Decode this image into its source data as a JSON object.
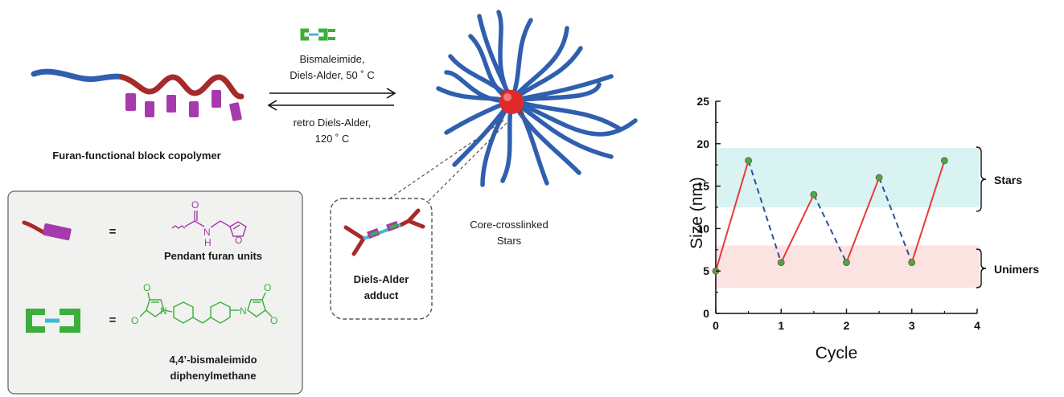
{
  "scheme": {
    "copolymer_label": "Furan-functional block copolymer",
    "forward_line1": "Bismaleimide,",
    "forward_line2": "Diels-Alder, 50 ˚ C",
    "reverse_line1": "retro Diels-Alder,",
    "reverse_line2": "120 ˚ C",
    "stars_line1": "Core-crosslinked",
    "stars_line2": "Stars",
    "adduct_line1": "Diels-Alder",
    "adduct_line2": "adduct"
  },
  "legend": {
    "equals": "=",
    "furan_label": "Pendant furan units",
    "bismaleimide_line1": "4,4’-bismaleimido",
    "bismaleimide_line2": "diphenylmethane",
    "atom_O": "O",
    "atom_N": "N",
    "atom_H": "H"
  },
  "colors": {
    "block_blue": "#2f5fae",
    "block_red": "#a72a2a",
    "furan_magenta": "#a63aad",
    "maleimide_green": "#3cae3c",
    "linker_cyan": "#3fb8d8",
    "core_red": "#e02a2a",
    "stars_band": "#d9f3f3",
    "unimers_band": "#fbe3e1",
    "rise_line": "#e83a3a",
    "fall_line": "#2e4f9c",
    "point_fill": "#4aa84a",
    "legend_box_bg": "#f1f1ef"
  },
  "chart_data": {
    "type": "line",
    "xlabel": "Cycle",
    "ylabel": "Size (nm)",
    "xlim": [
      0,
      4
    ],
    "ylim": [
      0,
      25
    ],
    "xticks": [
      0,
      1,
      2,
      3,
      4
    ],
    "yticks": [
      0,
      5,
      10,
      15,
      20,
      25
    ],
    "x": [
      0,
      0.5,
      1,
      1.5,
      2,
      2.5,
      3,
      3.5
    ],
    "y": [
      5,
      18,
      6,
      14,
      6,
      16,
      6,
      18
    ],
    "bands": [
      {
        "label": "Stars",
        "y_range": [
          12.5,
          19.5
        ]
      },
      {
        "label": "Unimers",
        "y_range": [
          3,
          8
        ]
      }
    ],
    "segment_style": "rising segments solid red, falling segments dashed blue"
  }
}
